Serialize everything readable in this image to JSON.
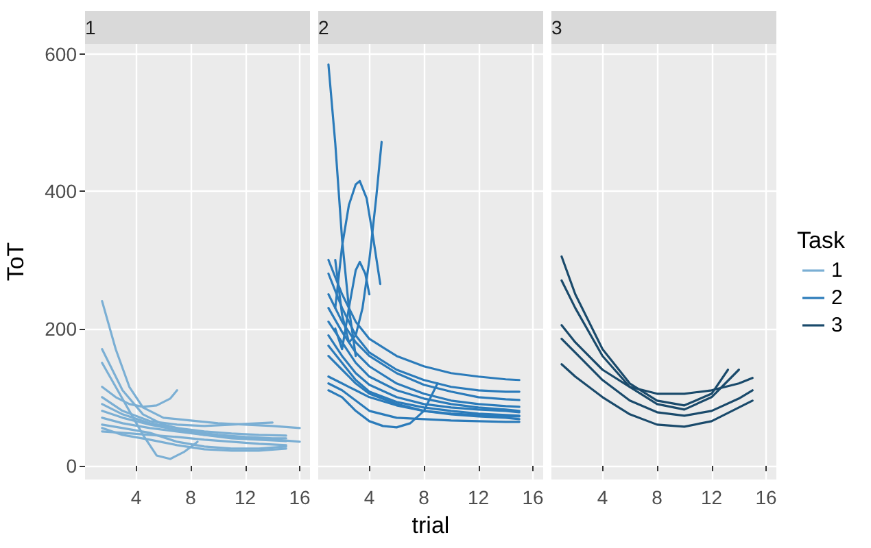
{
  "chart_data": [
    {
      "type": "line",
      "title": "1",
      "ylabel": "ToT",
      "xlim": [
        0.25,
        16.75
      ],
      "xticks": [
        4,
        8,
        12,
        16
      ],
      "ylim": [
        -20,
        615
      ],
      "yticks": [
        0,
        200,
        400,
        600
      ],
      "grid": true,
      "legend": "right",
      "marker": "none",
      "series": [
        {
          "name": "1",
          "color": "#7bafd4",
          "x": [
            1.5,
            2.5,
            3.5,
            4.5,
            6,
            8,
            10,
            12,
            14,
            16
          ],
          "values": [
            240,
            170,
            115,
            85,
            70,
            66,
            62,
            60,
            58,
            55
          ]
        },
        {
          "color": "#7bafd4",
          "x": [
            1.5,
            2.5,
            3.5,
            4.5,
            5.5,
            6.5,
            7
          ],
          "values": [
            115,
            100,
            90,
            86,
            88,
            98,
            110
          ]
        },
        {
          "color": "#7bafd4",
          "x": [
            1.5,
            2.5,
            3.5,
            4.5,
            5.5,
            6.5,
            7.5,
            8.5
          ],
          "values": [
            150,
            115,
            80,
            45,
            15,
            10,
            20,
            35
          ]
        },
        {
          "color": "#7bafd4",
          "x": [
            1.5,
            3,
            4.5,
            6,
            8,
            10,
            12,
            14,
            15
          ],
          "values": [
            170,
            110,
            75,
            60,
            50,
            45,
            42,
            40,
            40
          ]
        },
        {
          "color": "#7bafd4",
          "x": [
            1.5,
            3,
            5,
            7,
            9,
            11,
            13,
            15
          ],
          "values": [
            90,
            75,
            62,
            55,
            50,
            47,
            45,
            44
          ]
        },
        {
          "color": "#7bafd4",
          "x": [
            1.5,
            3,
            5,
            7,
            9,
            11,
            13,
            15
          ],
          "values": [
            80,
            70,
            60,
            52,
            45,
            40,
            38,
            36
          ]
        },
        {
          "color": "#7bafd4",
          "x": [
            1.5,
            3,
            5,
            7,
            9,
            11,
            13,
            16
          ],
          "values": [
            70,
            62,
            55,
            50,
            45,
            42,
            40,
            35
          ]
        },
        {
          "color": "#7bafd4",
          "x": [
            1.5,
            3,
            5,
            7,
            9,
            11,
            13,
            15
          ],
          "values": [
            55,
            45,
            38,
            30,
            24,
            22,
            22,
            25
          ]
        },
        {
          "color": "#7bafd4",
          "x": [
            1.5,
            3,
            5,
            7,
            9,
            11,
            13,
            15
          ],
          "values": [
            50,
            48,
            45,
            42,
            38,
            35,
            32,
            30
          ]
        },
        {
          "color": "#7bafd4",
          "x": [
            1.5,
            3,
            5,
            7,
            9,
            11,
            13,
            15
          ],
          "values": [
            60,
            55,
            48,
            35,
            28,
            25,
            25,
            28
          ]
        },
        {
          "color": "#7bafd4",
          "x": [
            1.5,
            3,
            5,
            7,
            9,
            11,
            13,
            14
          ],
          "values": [
            100,
            80,
            65,
            60,
            58,
            60,
            62,
            63
          ]
        }
      ]
    },
    {
      "type": "line",
      "title": "2",
      "xlabel": "trial",
      "xlim": [
        0.25,
        16.75
      ],
      "xticks": [
        4,
        8,
        12,
        16
      ],
      "ylim": [
        -20,
        615
      ],
      "yticks": [
        0,
        200,
        400,
        600
      ],
      "tick_labels": "x",
      "grid": true,
      "legend": "right",
      "marker": "none",
      "series": [
        {
          "name": "2",
          "color": "#2b7bba",
          "x": [
            1,
            1.5,
            2,
            2.5,
            3
          ],
          "values": [
            585,
            470,
            330,
            230,
            160
          ]
        },
        {
          "color": "#2b7bba",
          "x": [
            1.5,
            2,
            2.5,
            3,
            3.3,
            3.8,
            4.3,
            4.8
          ],
          "values": [
            230,
            320,
            380,
            410,
            415,
            390,
            330,
            265
          ]
        },
        {
          "color": "#2b7bba",
          "x": [
            1.5,
            2,
            2.5,
            3,
            3.5,
            4,
            4.5,
            4.9
          ],
          "values": [
            300,
            220,
            180,
            190,
            230,
            300,
            390,
            472
          ]
        },
        {
          "color": "#2b7bba",
          "x": [
            1.5,
            2,
            2.5,
            3,
            3.3,
            3.7,
            4
          ],
          "values": [
            200,
            170,
            230,
            285,
            297,
            280,
            250
          ]
        },
        {
          "color": "#2b7bba",
          "x": [
            1,
            2,
            3,
            4,
            6,
            8,
            10,
            12,
            14,
            15
          ],
          "values": [
            300,
            250,
            210,
            185,
            160,
            145,
            135,
            130,
            126,
            125
          ]
        },
        {
          "color": "#2b7bba",
          "x": [
            1,
            2,
            3,
            4,
            6,
            8,
            10,
            12,
            14,
            15
          ],
          "values": [
            280,
            230,
            190,
            165,
            140,
            125,
            115,
            110,
            108,
            108
          ]
        },
        {
          "color": "#2b7bba",
          "x": [
            1,
            2,
            3,
            4,
            6,
            8,
            10,
            12,
            14,
            15
          ],
          "values": [
            250,
            210,
            180,
            160,
            135,
            118,
            108,
            100,
            97,
            96
          ]
        },
        {
          "color": "#2b7bba",
          "x": [
            1,
            2,
            3,
            4,
            6,
            8,
            10,
            12,
            14,
            15
          ],
          "values": [
            230,
            195,
            165,
            145,
            120,
            105,
            95,
            90,
            87,
            86
          ]
        },
        {
          "color": "#2b7bba",
          "x": [
            1,
            2,
            3,
            4,
            6,
            8,
            10,
            12,
            14,
            15
          ],
          "values": [
            210,
            180,
            150,
            130,
            110,
            98,
            90,
            85,
            82,
            80
          ]
        },
        {
          "color": "#2b7bba",
          "x": [
            1,
            2,
            3,
            4,
            6,
            8,
            10,
            12,
            14,
            15
          ],
          "values": [
            190,
            160,
            135,
            118,
            100,
            90,
            85,
            82,
            80,
            78
          ]
        },
        {
          "color": "#2b7bba",
          "x": [
            1,
            2,
            3,
            4,
            6,
            8,
            10,
            12,
            14,
            15
          ],
          "values": [
            175,
            150,
            125,
            108,
            93,
            85,
            80,
            76,
            74,
            73
          ]
        },
        {
          "color": "#2b7bba",
          "x": [
            1,
            2,
            3,
            4,
            6,
            8,
            10,
            12,
            14,
            15
          ],
          "values": [
            130,
            120,
            110,
            100,
            88,
            80,
            75,
            72,
            70,
            68
          ]
        },
        {
          "color": "#2b7bba",
          "x": [
            1,
            2,
            3,
            4,
            6,
            8,
            10,
            12,
            14,
            15
          ],
          "values": [
            120,
            110,
            95,
            80,
            70,
            68,
            66,
            65,
            64,
            64
          ]
        },
        {
          "color": "#2b7bba",
          "x": [
            1,
            2,
            3,
            4,
            5,
            6,
            7,
            8,
            9
          ],
          "values": [
            110,
            100,
            80,
            65,
            58,
            56,
            62,
            80,
            120
          ]
        },
        {
          "color": "#2b7bba",
          "x": [
            1,
            2,
            3,
            4,
            6,
            8,
            10,
            12,
            14,
            15
          ],
          "values": [
            160,
            140,
            120,
            105,
            90,
            80,
            76,
            74,
            72,
            72
          ]
        }
      ]
    },
    {
      "type": "line",
      "title": "3",
      "legend_title": "Task",
      "xlim": [
        0.25,
        16.75
      ],
      "xticks": [
        4,
        8,
        12,
        16
      ],
      "ylim": [
        -20,
        615
      ],
      "yticks": [
        0,
        200,
        400,
        600
      ],
      "tick_labels": "x",
      "grid": true,
      "legend": "right",
      "marker": "none",
      "series": [
        {
          "name": "3",
          "color": "#1a4a6b",
          "x": [
            1,
            2,
            4,
            6,
            8,
            10,
            12,
            13.2
          ],
          "values": [
            305,
            250,
            170,
            120,
            95,
            88,
            105,
            140
          ]
        },
        {
          "color": "#1a4a6b",
          "x": [
            1,
            2,
            4,
            6,
            8,
            10,
            12,
            14
          ],
          "values": [
            270,
            230,
            160,
            115,
            90,
            82,
            100,
            140
          ]
        },
        {
          "color": "#1a4a6b",
          "x": [
            1,
            2,
            4,
            6,
            8,
            10,
            12,
            14,
            15
          ],
          "values": [
            205,
            180,
            140,
            115,
            105,
            105,
            110,
            120,
            128
          ]
        },
        {
          "color": "#1a4a6b",
          "x": [
            1,
            2,
            4,
            6,
            8,
            10,
            12,
            14,
            15
          ],
          "values": [
            185,
            165,
            125,
            95,
            78,
            73,
            80,
            98,
            110
          ]
        },
        {
          "color": "#1a4a6b",
          "x": [
            1,
            2,
            4,
            6,
            8,
            10,
            12,
            14,
            15
          ],
          "values": [
            148,
            130,
            100,
            75,
            60,
            57,
            65,
            85,
            95
          ]
        }
      ]
    }
  ]
}
